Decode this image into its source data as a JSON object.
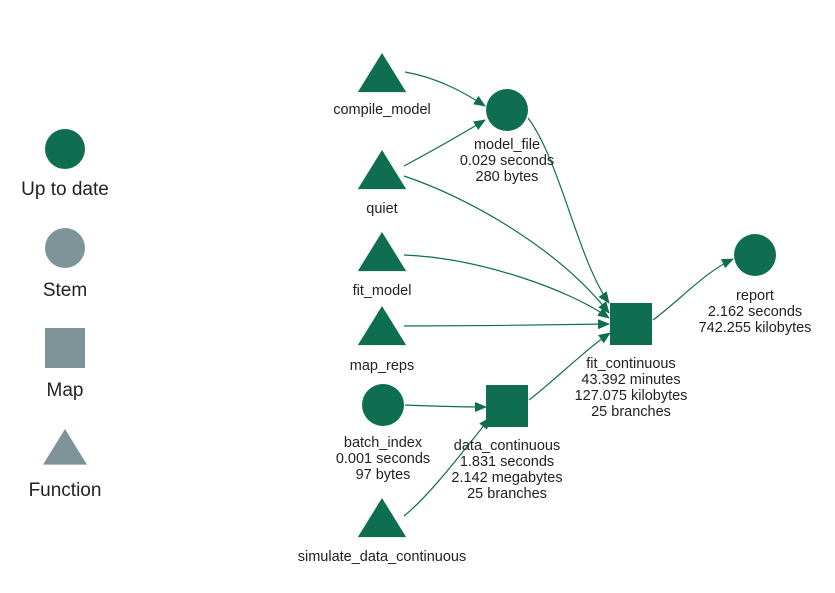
{
  "colors": {
    "up_to_date": "#0f6e50",
    "outdated_gray": "#7f9499",
    "edge": "#0f6e50",
    "text": "#222222"
  },
  "legend": {
    "items": [
      {
        "label": "Up to date",
        "shape": "circle",
        "color": "#0f6e50"
      },
      {
        "label": "Stem",
        "shape": "circle",
        "color": "#7f9499"
      },
      {
        "label": "Map",
        "shape": "square",
        "color": "#7f9499"
      },
      {
        "label": "Function",
        "shape": "triangle",
        "color": "#7f9499"
      }
    ]
  },
  "nodes": [
    {
      "id": "compile_model",
      "shape": "triangle",
      "lines": [
        "compile_model"
      ]
    },
    {
      "id": "quiet",
      "shape": "triangle",
      "lines": [
        "quiet"
      ]
    },
    {
      "id": "fit_model",
      "shape": "triangle",
      "lines": [
        "fit_model"
      ]
    },
    {
      "id": "map_reps",
      "shape": "triangle",
      "lines": [
        "map_reps"
      ]
    },
    {
      "id": "batch_index",
      "shape": "circle",
      "lines": [
        "batch_index",
        "0.001 seconds",
        "97 bytes"
      ]
    },
    {
      "id": "simulate_data_continuous",
      "shape": "triangle",
      "lines": [
        "simulate_data_continuous"
      ]
    },
    {
      "id": "model_file",
      "shape": "circle",
      "lines": [
        "model_file",
        "0.029 seconds",
        "280 bytes"
      ]
    },
    {
      "id": "data_continuous",
      "shape": "square",
      "lines": [
        "data_continuous",
        "1.831 seconds",
        "2.142 megabytes",
        "25 branches"
      ]
    },
    {
      "id": "fit_continuous",
      "shape": "square",
      "lines": [
        "fit_continuous",
        "43.392 minutes",
        "127.075 kilobytes",
        "25 branches"
      ]
    },
    {
      "id": "report",
      "shape": "circle",
      "lines": [
        "report",
        "2.162 seconds",
        "742.255 kilobytes"
      ]
    }
  ],
  "edges": [
    {
      "from": "compile_model",
      "to": "model_file"
    },
    {
      "from": "quiet",
      "to": "model_file"
    },
    {
      "from": "quiet",
      "to": "fit_continuous"
    },
    {
      "from": "model_file",
      "to": "fit_continuous"
    },
    {
      "from": "fit_model",
      "to": "fit_continuous"
    },
    {
      "from": "map_reps",
      "to": "fit_continuous"
    },
    {
      "from": "batch_index",
      "to": "data_continuous"
    },
    {
      "from": "simulate_data_continuous",
      "to": "data_continuous"
    },
    {
      "from": "data_continuous",
      "to": "fit_continuous"
    },
    {
      "from": "fit_continuous",
      "to": "report"
    }
  ]
}
